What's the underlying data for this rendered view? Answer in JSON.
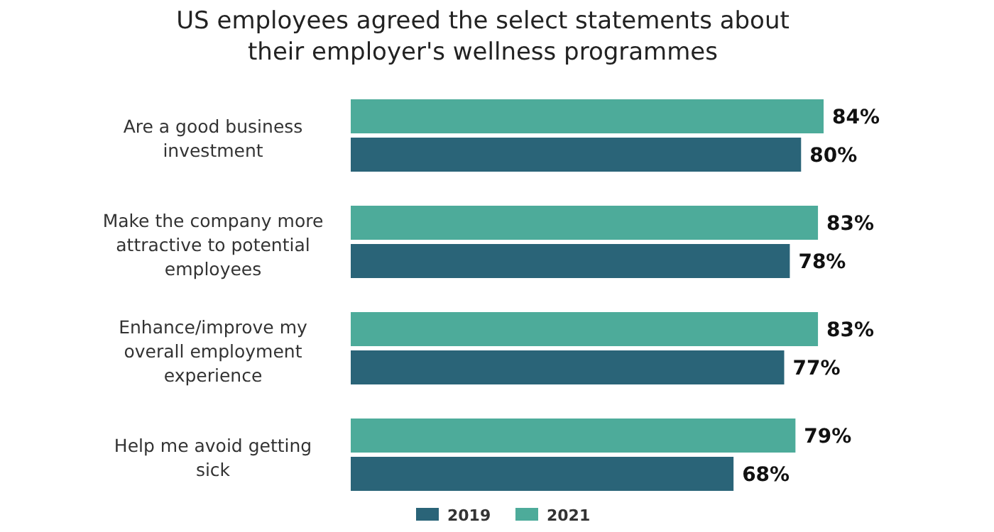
{
  "chart_data": {
    "type": "bar",
    "orientation": "horizontal",
    "title": "US employees agreed the select statements about their employer's wellness programmes",
    "categories": [
      "Are a good business investment",
      "Make the company more attractive to potential employees",
      "Enhance/improve my overall employment experience",
      "Help me avoid getting sick"
    ],
    "series": [
      {
        "name": "2021",
        "color": "#4dab9a",
        "values": [
          84,
          83,
          83,
          79
        ],
        "value_labels": [
          "84%",
          "83%",
          "83%",
          "79%"
        ]
      },
      {
        "name": "2019",
        "color": "#2a6478",
        "values": [
          80,
          78,
          77,
          68
        ],
        "value_labels": [
          "80%",
          "78%",
          "77%",
          "68%"
        ]
      }
    ],
    "legend": "bottom"
  }
}
